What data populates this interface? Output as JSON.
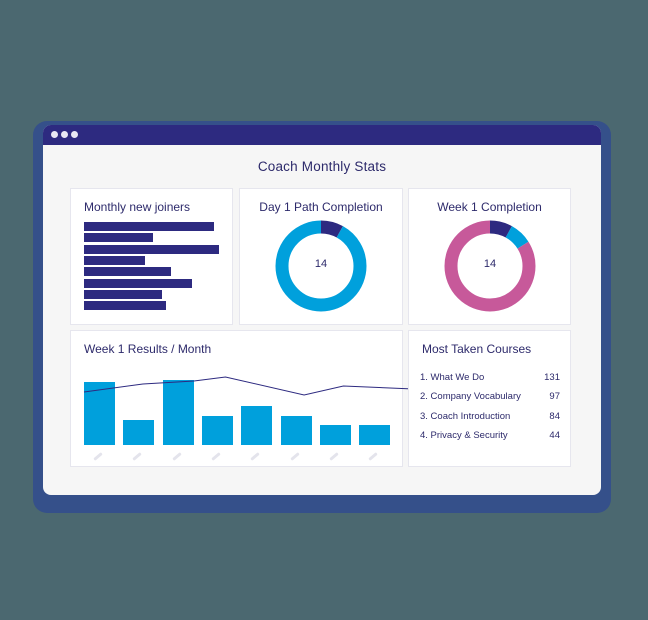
{
  "window": {
    "title_bar_dots": 3
  },
  "page": {
    "title": "Coach Monthly Stats"
  },
  "cards": {
    "monthly_new_joiners": {
      "title": "Monthly new joiners"
    },
    "day1_path_completion": {
      "title": "Day 1 Path Completion",
      "center_value": "14"
    },
    "week1_completion": {
      "title": "Week 1 Completion",
      "center_value": "14"
    },
    "week1_results_month": {
      "title": "Week 1 Results / Month"
    },
    "most_taken_courses": {
      "title": "Most Taken Courses",
      "items": [
        {
          "name": "1. What We Do",
          "count": "131"
        },
        {
          "name": "2. Company Vocabulary",
          "count": "97"
        },
        {
          "name": "3. Coach Introduction",
          "count": "84"
        },
        {
          "name": "4. Privacy & Security",
          "count": "44"
        }
      ]
    }
  },
  "colors": {
    "navy": "#2d2a80",
    "blue": "#00a0dc",
    "pink": "#c7599a",
    "background": "#4b6870",
    "frame": "#35508a"
  },
  "chart_data": [
    {
      "type": "bar",
      "orientation": "horizontal",
      "title": "Monthly new joiners",
      "categories": [
        "",
        "",
        "",
        "",
        "",
        "",
        "",
        ""
      ],
      "values": [
        130,
        69,
        135,
        61,
        87,
        108,
        78,
        82
      ]
    },
    {
      "type": "pie",
      "donut": true,
      "title": "Day 1 Path Completion",
      "center_label": "14",
      "values": [
        8,
        92
      ],
      "colors": [
        "#2d2a80",
        "#00a0dc"
      ]
    },
    {
      "type": "pie",
      "donut": true,
      "title": "Week 1 Completion",
      "center_label": "14",
      "values": [
        8,
        8,
        84
      ],
      "colors": [
        "#2d2a80",
        "#00a0dc",
        "#c7599a"
      ]
    },
    {
      "type": "bar",
      "title": "Week 1 Results / Month",
      "categories": [
        "",
        "",
        "",
        "",
        "",
        "",
        "",
        ""
      ],
      "series": [
        {
          "name": "bars",
          "type": "bar",
          "values": [
            63,
            25,
            65,
            29,
            39,
            29,
            20,
            20
          ]
        },
        {
          "name": "line",
          "type": "line",
          "x_pos": [
            0,
            1.5,
            2.8,
            3.6,
            5.6,
            6.6,
            7.6
          ],
          "values": [
            53,
            61,
            64,
            68,
            50,
            59,
            56
          ]
        }
      ]
    }
  ]
}
